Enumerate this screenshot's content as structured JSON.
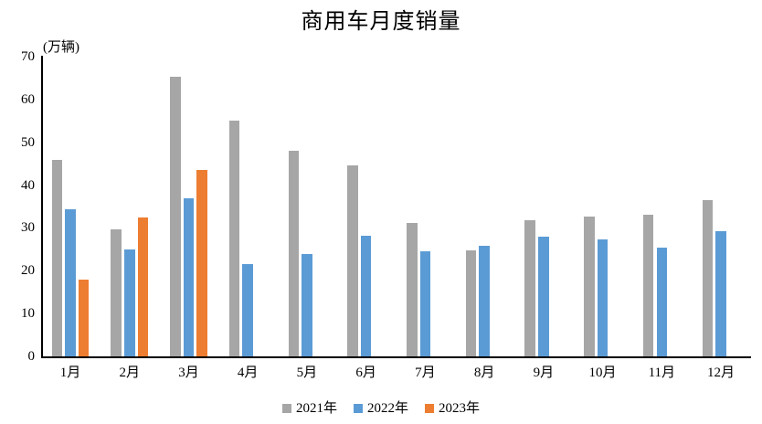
{
  "chart_data": {
    "type": "bar",
    "title": "商用车月度销量",
    "unit_label": "(万辆)",
    "categories": [
      "1月",
      "2月",
      "3月",
      "4月",
      "5月",
      "6月",
      "7月",
      "8月",
      "9月",
      "10月",
      "11月",
      "12月"
    ],
    "series": [
      {
        "name": "2021年",
        "color": "#A6A6A6",
        "values": [
          45.9,
          29.7,
          65.2,
          55.1,
          48.1,
          44.6,
          31.2,
          24.8,
          31.8,
          32.6,
          33.0,
          36.4
        ]
      },
      {
        "name": "2022年",
        "color": "#5B9BD5",
        "values": [
          34.3,
          25.0,
          37.0,
          21.6,
          23.9,
          28.1,
          24.6,
          25.9,
          28.0,
          27.3,
          25.4,
          29.2
        ]
      },
      {
        "name": "2023年",
        "color": "#ED7D31",
        "values": [
          18.0,
          32.4,
          43.6,
          null,
          null,
          null,
          null,
          null,
          null,
          null,
          null,
          null
        ]
      }
    ],
    "ylabel": "",
    "xlabel": "",
    "ylim": [
      0,
      70
    ],
    "yticks": [
      0,
      10,
      20,
      30,
      40,
      50,
      60,
      70
    ],
    "grid": false,
    "legend_position": "bottom",
    "axis_color": "#000000",
    "text_color": "#000000",
    "background": "#FFFFFF"
  }
}
